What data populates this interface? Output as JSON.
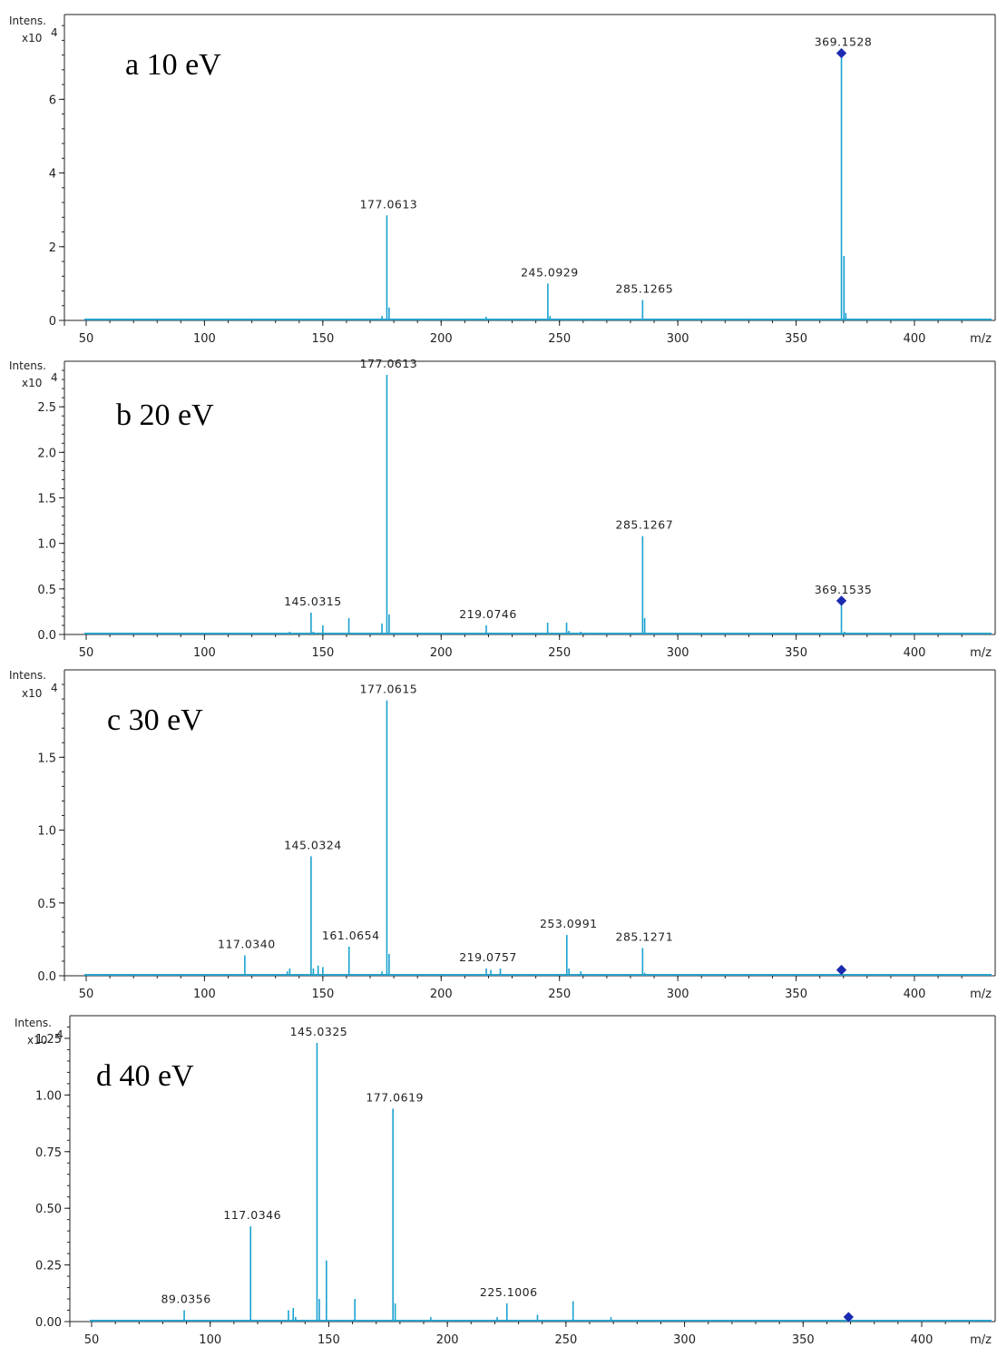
{
  "chart_data": [
    {
      "type": "bar",
      "title": "a 10 eV",
      "ylabel": "Intens.",
      "yunit": "x10",
      "yexp": "4",
      "xlabel": "m/z",
      "xlim": [
        40,
        432
      ],
      "ylim": [
        0,
        8.3
      ],
      "yticks": [
        "0",
        "2",
        "4",
        "6"
      ],
      "xticks": [
        "50",
        "100",
        "150",
        "200",
        "250",
        "300",
        "350",
        "400"
      ],
      "peaks": [
        {
          "x": 140,
          "y": 0.03
        },
        {
          "x": 145,
          "y": 0.03
        },
        {
          "x": 175,
          "y": 0.12
        },
        {
          "x": 177.06,
          "y": 2.85,
          "label": "177.0613"
        },
        {
          "x": 178,
          "y": 0.35
        },
        {
          "x": 203,
          "y": 0.02
        },
        {
          "x": 219,
          "y": 0.1
        },
        {
          "x": 245.09,
          "y": 1.0,
          "label": "245.0929"
        },
        {
          "x": 246,
          "y": 0.12
        },
        {
          "x": 285.13,
          "y": 0.55,
          "label": "285.1265"
        },
        {
          "x": 367,
          "y": 0.05
        },
        {
          "x": 369.15,
          "y": 7.25,
          "label": "369.1528"
        },
        {
          "x": 370.2,
          "y": 1.75
        },
        {
          "x": 371,
          "y": 0.2
        }
      ],
      "markers": [
        {
          "x": 369.15,
          "y": 7.25
        }
      ]
    },
    {
      "type": "bar",
      "title": "b 20 eV",
      "ylabel": "Intens.",
      "yunit": "x10",
      "yexp": "4",
      "xlabel": "m/z",
      "xlim": [
        40,
        432
      ],
      "ylim": [
        0,
        3.0
      ],
      "yticks": [
        "0.0",
        "0.5",
        "1.0",
        "1.5",
        "2.0",
        "2.5"
      ],
      "xticks": [
        "50",
        "100",
        "150",
        "200",
        "250",
        "300",
        "350",
        "400"
      ],
      "peaks": [
        {
          "x": 117,
          "y": 0.02
        },
        {
          "x": 136,
          "y": 0.03
        },
        {
          "x": 145.03,
          "y": 0.24,
          "label": "145.0315"
        },
        {
          "x": 146,
          "y": 0.03
        },
        {
          "x": 150,
          "y": 0.1
        },
        {
          "x": 161,
          "y": 0.18
        },
        {
          "x": 175,
          "y": 0.12
        },
        {
          "x": 177.06,
          "y": 2.85,
          "label": "177.0613"
        },
        {
          "x": 178,
          "y": 0.22
        },
        {
          "x": 203,
          "y": 0.02
        },
        {
          "x": 219.07,
          "y": 0.1,
          "label": "219.0746"
        },
        {
          "x": 245,
          "y": 0.13
        },
        {
          "x": 253,
          "y": 0.13
        },
        {
          "x": 254,
          "y": 0.04
        },
        {
          "x": 259,
          "y": 0.03
        },
        {
          "x": 285.13,
          "y": 1.08,
          "label": "285.1267"
        },
        {
          "x": 286,
          "y": 0.18
        },
        {
          "x": 369.15,
          "y": 0.37,
          "label": "369.1535"
        },
        {
          "x": 370.5,
          "y": 0.03
        }
      ],
      "markers": [
        {
          "x": 369.15,
          "y": 0.37
        }
      ]
    },
    {
      "type": "bar",
      "title": "c 30 eV",
      "ylabel": "Intens.",
      "yunit": "x10",
      "yexp": "4",
      "xlabel": "m/z",
      "xlim": [
        40,
        432
      ],
      "ylim": [
        0,
        2.1
      ],
      "yticks": [
        "0.0",
        "0.5",
        "1.0",
        "1.5"
      ],
      "xticks": [
        "50",
        "100",
        "150",
        "200",
        "250",
        "300",
        "350",
        "400"
      ],
      "peaks": [
        {
          "x": 117.03,
          "y": 0.14,
          "label": "117.0340"
        },
        {
          "x": 135,
          "y": 0.03
        },
        {
          "x": 136,
          "y": 0.05
        },
        {
          "x": 145.03,
          "y": 0.82,
          "label": "145.0324"
        },
        {
          "x": 146,
          "y": 0.05
        },
        {
          "x": 148,
          "y": 0.07
        },
        {
          "x": 150,
          "y": 0.06
        },
        {
          "x": 161.07,
          "y": 0.2,
          "label": "161.0654"
        },
        {
          "x": 175,
          "y": 0.03
        },
        {
          "x": 177.06,
          "y": 1.89,
          "label": "177.0615"
        },
        {
          "x": 178,
          "y": 0.15
        },
        {
          "x": 219.08,
          "y": 0.05,
          "label": "219.0757"
        },
        {
          "x": 221,
          "y": 0.04
        },
        {
          "x": 225,
          "y": 0.05
        },
        {
          "x": 253.1,
          "y": 0.28,
          "label": "253.0991"
        },
        {
          "x": 254,
          "y": 0.05
        },
        {
          "x": 259,
          "y": 0.03
        },
        {
          "x": 285.13,
          "y": 0.19,
          "label": "285.1271"
        },
        {
          "x": 286,
          "y": 0.02
        }
      ],
      "markers": [
        {
          "x": 369.15,
          "y": 0.04
        }
      ]
    },
    {
      "type": "bar",
      "title": "d 40 eV",
      "ylabel": "Intens.",
      "yunit": "x10",
      "yexp": "4",
      "xlabel": "m/z",
      "xlim": [
        40,
        432
      ],
      "ylim": [
        0,
        1.35
      ],
      "yticks": [
        "0.00",
        "0.25",
        "0.50",
        "0.75",
        "1.00",
        "1.25"
      ],
      "xticks": [
        "50",
        "100",
        "150",
        "200",
        "250",
        "300",
        "350",
        "400"
      ],
      "peaks": [
        {
          "x": 89.04,
          "y": 0.05,
          "label": "89.0356"
        },
        {
          "x": 117.03,
          "y": 0.42,
          "label": "117.0346"
        },
        {
          "x": 133,
          "y": 0.05
        },
        {
          "x": 135,
          "y": 0.06
        },
        {
          "x": 136,
          "y": 0.02
        },
        {
          "x": 145.03,
          "y": 1.23,
          "label": "145.0325"
        },
        {
          "x": 146,
          "y": 0.1
        },
        {
          "x": 149,
          "y": 0.27
        },
        {
          "x": 161,
          "y": 0.1
        },
        {
          "x": 177.06,
          "y": 0.94,
          "label": "177.0619"
        },
        {
          "x": 178,
          "y": 0.08
        },
        {
          "x": 193,
          "y": 0.02
        },
        {
          "x": 221,
          "y": 0.02
        },
        {
          "x": 225.1,
          "y": 0.08,
          "label": "225.1006"
        },
        {
          "x": 238,
          "y": 0.03
        },
        {
          "x": 253,
          "y": 0.09
        },
        {
          "x": 269,
          "y": 0.02
        }
      ],
      "markers": [
        {
          "x": 369.15,
          "y": 0.02
        }
      ]
    }
  ]
}
